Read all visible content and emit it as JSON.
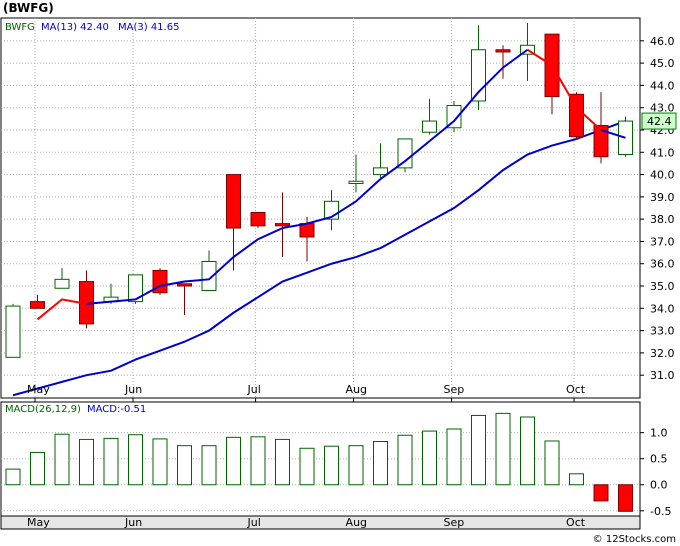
{
  "title": "(BWFG)",
  "credit": "© 12Stocks.com",
  "colors": {
    "up_fill": "#ffffff",
    "up_stroke": "#006400",
    "down_fill": "#ff0000",
    "down_stroke": "#800000",
    "ma13": "#0000cc",
    "ma3": "#ff0000",
    "macd_bar": "#006400",
    "macd_neg": "#ff0000",
    "grid": "#b0b0b0",
    "panel_bg": "#ffffff",
    "last_box": "#ccffcc"
  },
  "chart_data": [
    {
      "type": "candlestick",
      "legend": {
        "ticker": "BWFG",
        "ma13_label": "MA(13)",
        "ma13_value": "42.40",
        "ma3_label": "MA(3)",
        "ma3_value": "41.65"
      },
      "ylim": [
        30.2,
        46.8
      ],
      "y_ticks": [
        "31.0",
        "32.0",
        "33.0",
        "34.0",
        "35.0",
        "36.0",
        "37.0",
        "38.0",
        "39.0",
        "40.0",
        "41.0",
        "42.0",
        "43.0",
        "44.0",
        "45.0",
        "46.0"
      ],
      "last_price_label": "42.4",
      "last_price": 42.4,
      "x_month_labels": [
        {
          "label": "May",
          "index": 1.4
        },
        {
          "label": "Jun",
          "index": 5.4
        },
        {
          "label": "Jul",
          "index": 10.4
        },
        {
          "label": "Aug",
          "index": 14.4
        },
        {
          "label": "Sep",
          "index": 18.4
        },
        {
          "label": "Oct",
          "index": 23.4
        }
      ],
      "candles": [
        {
          "o": 31.8,
          "h": 34.2,
          "l": 31.8,
          "c": 34.1
        },
        {
          "o": 34.3,
          "h": 34.6,
          "l": 34.0,
          "c": 34.0
        },
        {
          "o": 34.9,
          "h": 35.8,
          "l": 34.9,
          "c": 35.3
        },
        {
          "o": 35.2,
          "h": 35.7,
          "l": 33.1,
          "c": 33.3
        },
        {
          "o": 34.3,
          "h": 35.1,
          "l": 34.2,
          "c": 34.5
        },
        {
          "o": 34.3,
          "h": 35.5,
          "l": 34.2,
          "c": 35.5
        },
        {
          "o": 35.7,
          "h": 35.8,
          "l": 34.6,
          "c": 34.7
        },
        {
          "o": 35.1,
          "h": 35.1,
          "l": 33.7,
          "c": 35.0
        },
        {
          "o": 34.8,
          "h": 36.6,
          "l": 34.8,
          "c": 36.1
        },
        {
          "o": 40.0,
          "h": 40.0,
          "l": 35.7,
          "c": 37.6
        },
        {
          "o": 38.3,
          "h": 38.3,
          "l": 37.6,
          "c": 37.7
        },
        {
          "o": 37.8,
          "h": 39.2,
          "l": 36.3,
          "c": 37.7
        },
        {
          "o": 37.8,
          "h": 38.1,
          "l": 36.1,
          "c": 37.2
        },
        {
          "o": 38.0,
          "h": 39.3,
          "l": 37.5,
          "c": 38.8
        },
        {
          "o": 39.6,
          "h": 40.9,
          "l": 39.2,
          "c": 39.7
        },
        {
          "o": 40.0,
          "h": 41.4,
          "l": 39.8,
          "c": 40.3
        },
        {
          "o": 40.3,
          "h": 41.6,
          "l": 40.1,
          "c": 41.6
        },
        {
          "o": 41.9,
          "h": 43.4,
          "l": 41.8,
          "c": 42.4
        },
        {
          "o": 42.1,
          "h": 43.3,
          "l": 41.9,
          "c": 43.1
        },
        {
          "o": 43.3,
          "h": 46.7,
          "l": 42.9,
          "c": 45.6
        },
        {
          "o": 45.6,
          "h": 45.8,
          "l": 44.3,
          "c": 45.5
        },
        {
          "o": 45.4,
          "h": 46.8,
          "l": 44.2,
          "c": 45.8
        },
        {
          "o": 46.3,
          "h": 46.3,
          "l": 42.7,
          "c": 43.5
        },
        {
          "o": 43.6,
          "h": 43.7,
          "l": 41.6,
          "c": 41.7
        },
        {
          "o": 42.2,
          "h": 43.7,
          "l": 40.5,
          "c": 40.8
        },
        {
          "o": 40.9,
          "h": 42.6,
          "l": 40.8,
          "c": 42.4
        }
      ],
      "ma13": [
        30.1,
        30.4,
        30.7,
        31.0,
        31.2,
        31.7,
        32.1,
        32.5,
        33.0,
        33.8,
        34.5,
        35.2,
        35.6,
        36.0,
        36.3,
        36.7,
        37.3,
        37.9,
        38.5,
        39.3,
        40.2,
        40.9,
        41.3,
        41.6,
        42.0,
        42.4
      ],
      "ma3": [
        31.7,
        33.5,
        34.4,
        34.2,
        34.3,
        34.4,
        35.0,
        35.2,
        35.3,
        36.3,
        37.1,
        37.6,
        37.8,
        38.1,
        38.8,
        39.8,
        40.6,
        41.5,
        42.4,
        43.7,
        44.8,
        45.6,
        44.9,
        43.0,
        42.0,
        41.65
      ],
      "ma3_segments": [
        [
          1,
          3
        ],
        [
          21,
          24
        ]
      ]
    },
    {
      "type": "bar",
      "legend": {
        "label": "MACD(26,12,9)",
        "value_label": "MACD:",
        "value": "-0.51"
      },
      "ylim": [
        -0.6,
        1.55
      ],
      "y_ticks": [
        "-0.5",
        "0.0",
        "0.5",
        "1.0"
      ],
      "x_month_labels": [
        "May",
        "Jun",
        "Jul",
        "Aug",
        "Sep",
        "Oct"
      ],
      "values": [
        0.3,
        0.62,
        0.97,
        0.87,
        0.89,
        0.96,
        0.88,
        0.75,
        0.75,
        0.91,
        0.92,
        0.87,
        0.7,
        0.74,
        0.75,
        0.83,
        0.95,
        1.03,
        1.07,
        1.33,
        1.37,
        1.3,
        0.84,
        0.21,
        -0.31,
        -0.51
      ]
    }
  ]
}
